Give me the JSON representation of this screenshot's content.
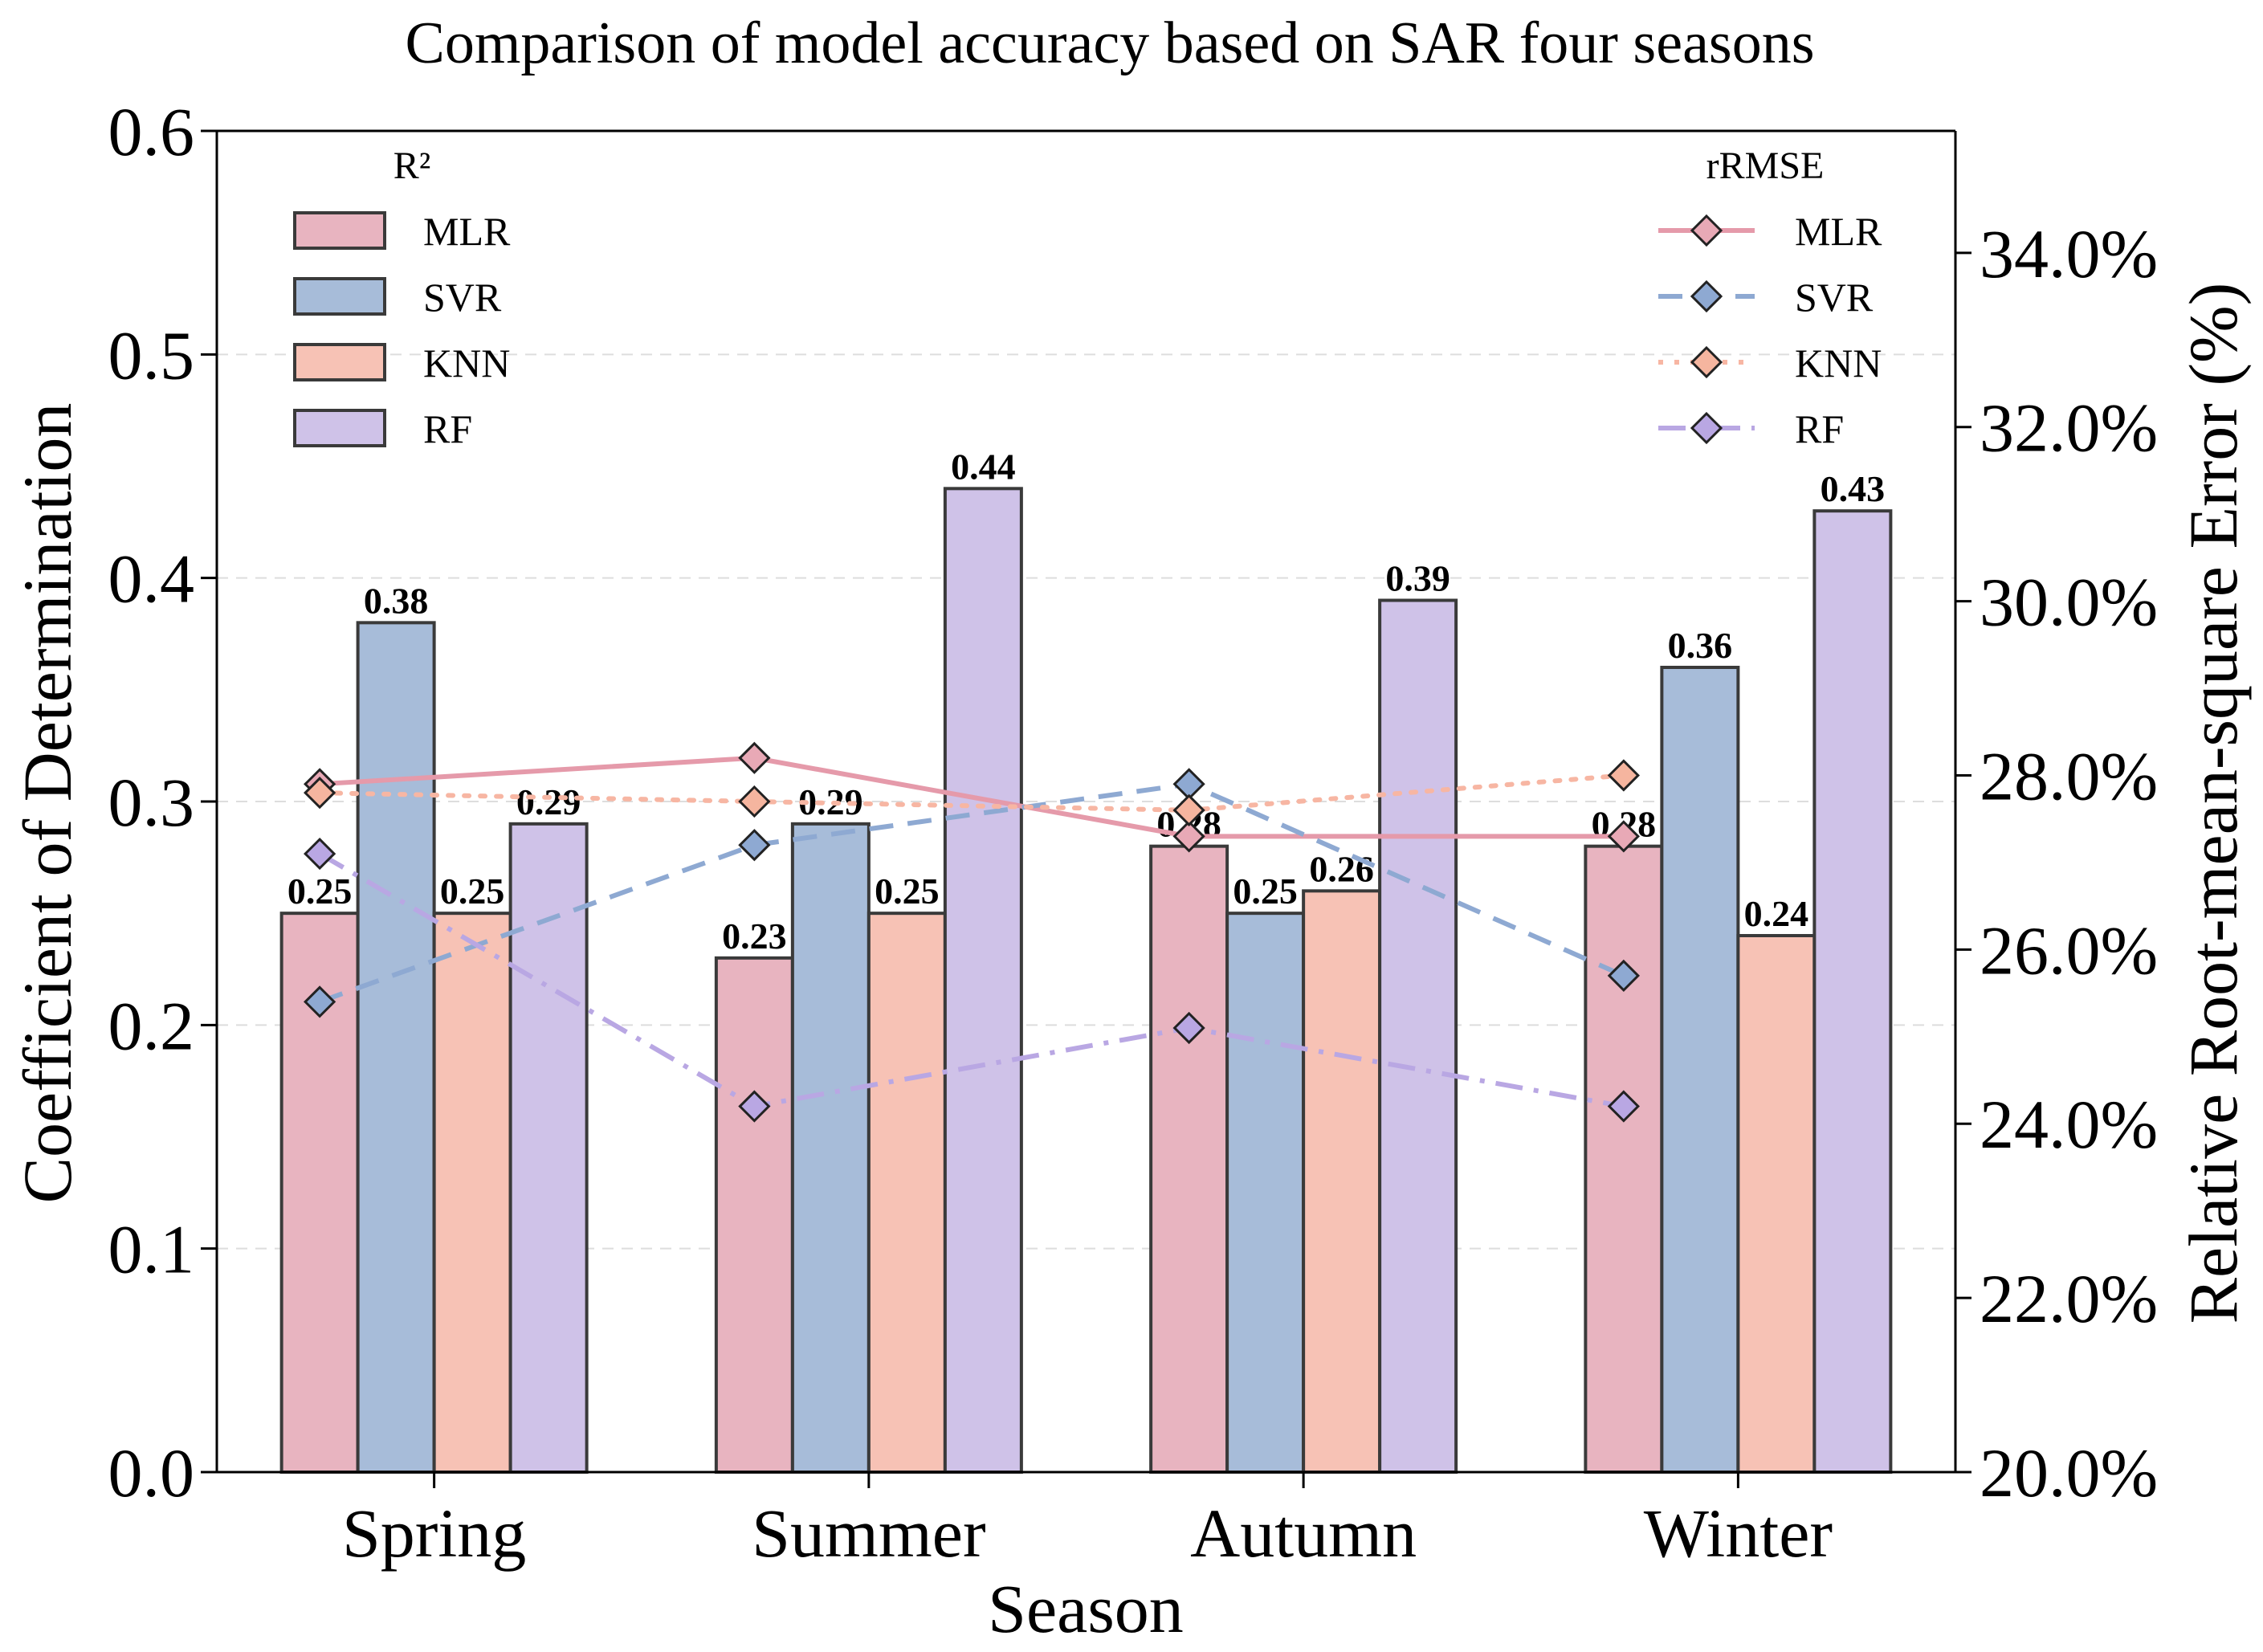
{
  "chart_data": {
    "type": "bar",
    "title": "Comparison of model accuracy based on SAR four seasons",
    "xlabel": "Season",
    "ylabel": "Coefficient of Determination",
    "y2label": "Relative Root-mean-square Error (%)",
    "categories": [
      "Spring",
      "Summer",
      "Autumn",
      "Winter"
    ],
    "ylim": [
      0.0,
      0.6
    ],
    "yticks": [
      "0.0",
      "0.1",
      "0.2",
      "0.3",
      "0.4",
      "0.5",
      "0.6"
    ],
    "y2lim": [
      20.0,
      35.4
    ],
    "y2ticks": [
      "20.0%",
      "22.0%",
      "24.0%",
      "26.0%",
      "28.0%",
      "30.0%",
      "32.0%",
      "34.0%"
    ],
    "grid": true,
    "legend_bars_title": "R²",
    "legend_lines_title": "rRMSE",
    "legend_bars_position": "top-left",
    "legend_lines_position": "top-right",
    "bar_series": [
      {
        "name": "MLR",
        "color": "#e8b4c0",
        "values": [
          0.25,
          0.23,
          0.28,
          0.28
        ],
        "labels": [
          "0.25",
          "0.23",
          "0.28",
          "0.28"
        ]
      },
      {
        "name": "SVR",
        "color": "#a7bcd9",
        "values": [
          0.38,
          0.29,
          0.25,
          0.36
        ],
        "labels": [
          "0.38",
          "0.29",
          "0.25",
          "0.36"
        ]
      },
      {
        "name": "KNN",
        "color": "#f7c2b5",
        "values": [
          0.25,
          0.25,
          0.26,
          0.24
        ],
        "labels": [
          "0.25",
          "0.25",
          "0.26",
          "0.24"
        ]
      },
      {
        "name": "RF",
        "color": "#cfc2e8",
        "values": [
          0.29,
          0.44,
          0.39,
          0.43
        ],
        "labels": [
          "0.29",
          "0.44",
          "0.39",
          "0.43"
        ]
      }
    ],
    "line_series": [
      {
        "name": "MLR",
        "color": "#e59aaa",
        "marker_color": "#e8a9b6",
        "dash": "solid",
        "values": [
          27.9,
          28.2,
          27.3,
          27.3
        ]
      },
      {
        "name": "SVR",
        "color": "#8ea9d2",
        "marker_color": "#8ea9d2",
        "dash": "dashed",
        "values": [
          25.4,
          27.2,
          27.9,
          25.7
        ]
      },
      {
        "name": "KNN",
        "color": "#f7b6a3",
        "marker_color": "#f5b59f",
        "dash": "dotted",
        "values": [
          27.8,
          27.7,
          27.6,
          28.0
        ]
      },
      {
        "name": "RF",
        "color": "#b9a7e3",
        "marker_color": "#b9a7e3",
        "dash": "dashdot",
        "values": [
          27.1,
          24.2,
          25.1,
          24.2
        ]
      }
    ]
  }
}
